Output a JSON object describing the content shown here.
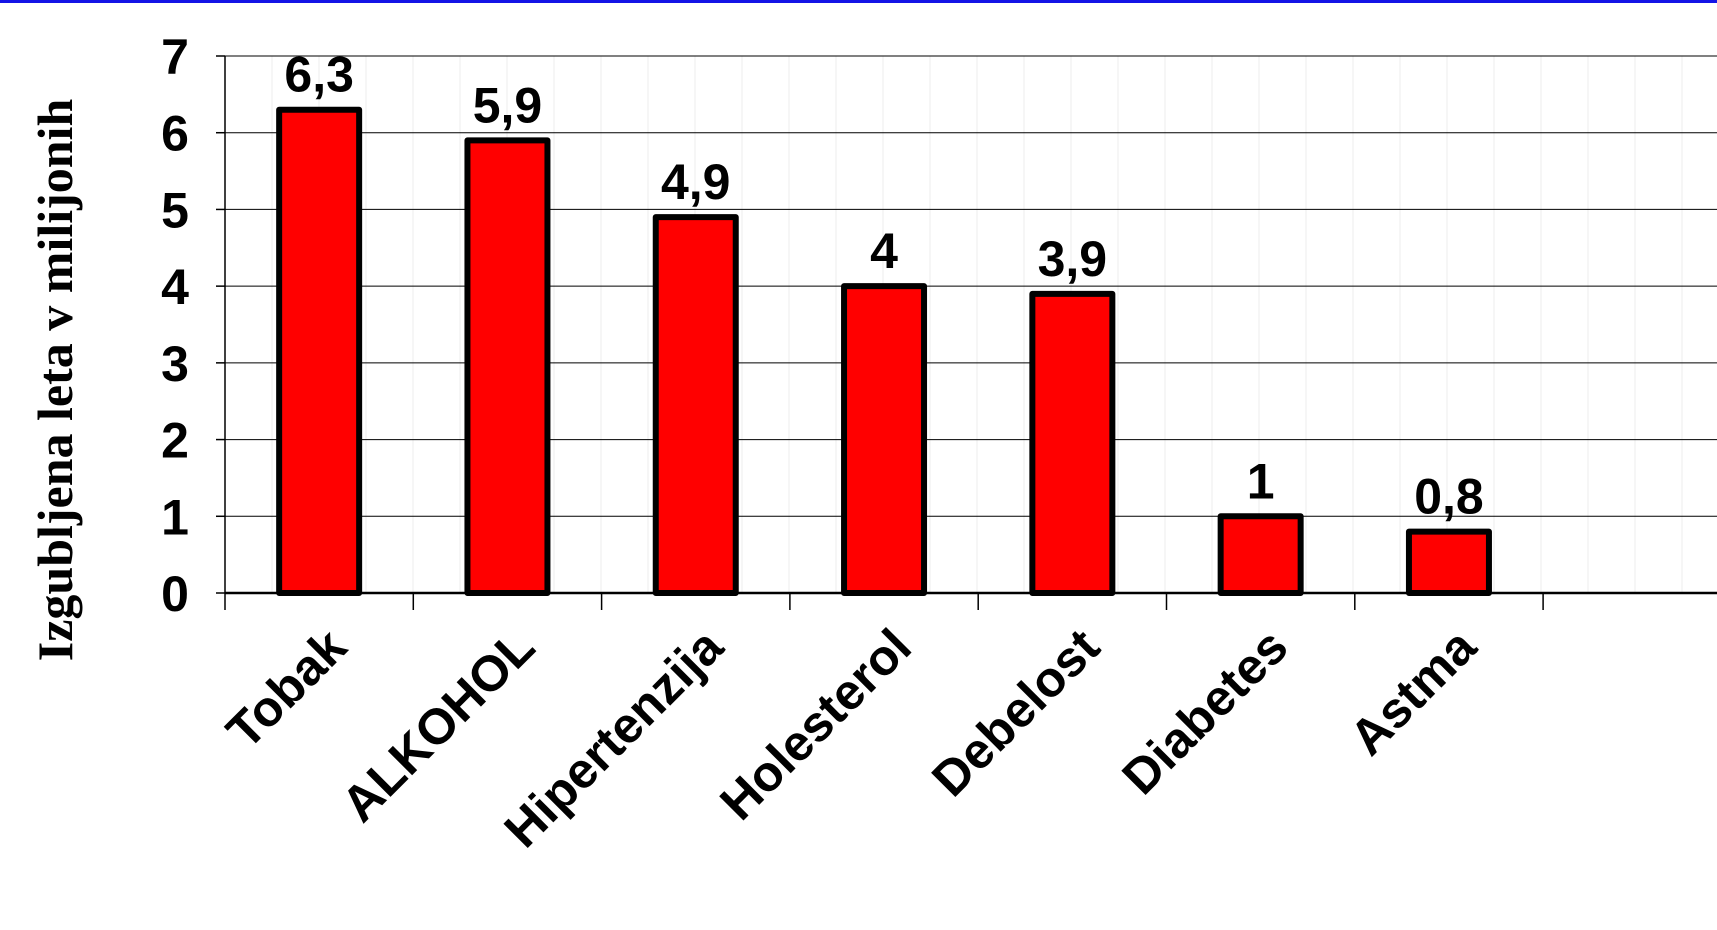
{
  "chart_data": {
    "type": "bar",
    "title": "",
    "xlabel": "",
    "ylabel": "Izgubljena leta v milijonih",
    "categories": [
      "Tobak",
      "ALKOHOL",
      "Hipertenzija",
      "Holesterol",
      "Debelost",
      "Diabetes",
      "Astma"
    ],
    "values": [
      6.3,
      5.9,
      4.9,
      4,
      3.9,
      1,
      0.8
    ],
    "value_labels": [
      "6,3",
      "5,9",
      "4,9",
      "4",
      "3,9",
      "1",
      "0,8"
    ],
    "ylim": [
      0,
      7
    ],
    "yticks": [
      "0",
      "1",
      "2",
      "3",
      "4",
      "5",
      "6",
      "7"
    ],
    "grid": true,
    "legend": "none",
    "bar_color": "#ff0000",
    "bar_edge_color": "#000000",
    "header_rule_color": "#1414e6"
  }
}
